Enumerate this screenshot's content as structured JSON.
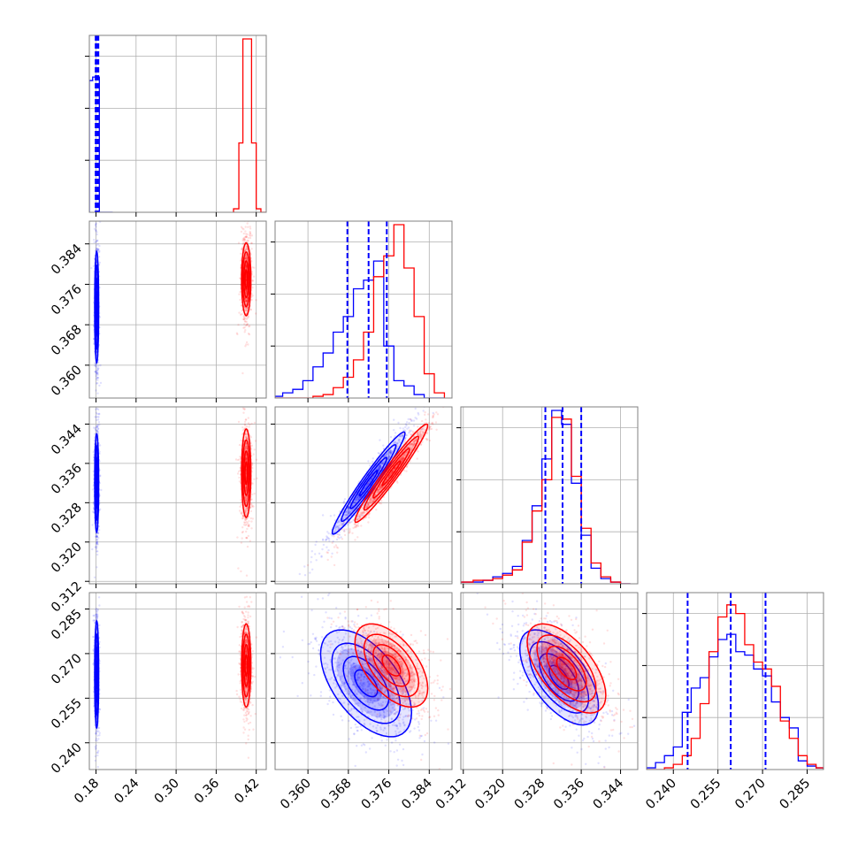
{
  "chart_data": {
    "type": "scatter",
    "chart_kind": "corner-plot",
    "grid": true,
    "series": [
      {
        "name": "",
        "color": "#0000ff"
      },
      {
        "name": "",
        "color": "#ff0000"
      }
    ],
    "parameters": [
      {
        "range": [
          0.17,
          0.435
        ],
        "ticks": [
          0.18,
          0.24,
          0.3,
          0.36,
          0.42
        ],
        "tick_labels": [
          "0.18",
          "0.24",
          "0.30",
          "0.36",
          "0.42"
        ]
      },
      {
        "range": [
          0.3535,
          0.3885
        ],
        "ticks": [
          0.36,
          0.368,
          0.376,
          0.384
        ],
        "tick_labels": [
          "0.360",
          "0.368",
          "0.376",
          "0.384"
        ]
      },
      {
        "range": [
          0.3115,
          0.3475
        ],
        "ticks": [
          0.312,
          0.32,
          0.328,
          0.336,
          0.344
        ],
        "tick_labels": [
          "0.312",
          "0.320",
          "0.328",
          "0.336",
          "0.344"
        ]
      },
      {
        "range": [
          0.231,
          0.2905
        ],
        "ticks": [
          0.24,
          0.255,
          0.27,
          0.285
        ],
        "tick_labels": [
          "0.240",
          "0.255",
          "0.270",
          "0.285"
        ]
      }
    ],
    "histograms": [
      {
        "param": 0,
        "blue": {
          "edges": [
            0.17,
            0.175,
            0.185,
            0.195,
            0.205
          ],
          "counts": [
            0.76,
            0.78,
            0.0,
            0.0
          ],
          "quantile_lines": [
            0.1795,
            0.1805,
            0.1815,
            0.1825,
            0.1835
          ]
        },
        "red": {
          "edges": [
            0.386,
            0.394,
            0.4,
            0.407,
            0.413,
            0.42,
            0.427,
            0.435
          ],
          "counts": [
            0.02,
            0.4,
            1.0,
            1.0,
            0.4,
            0.02,
            0.0
          ],
          "quantile_lines": []
        }
      },
      {
        "param": 1,
        "edges": [
          0.3535,
          0.355,
          0.357,
          0.359,
          0.361,
          0.363,
          0.365,
          0.367,
          0.369,
          0.371,
          0.373,
          0.375,
          0.377,
          0.379,
          0.381,
          0.383,
          0.385,
          0.387
        ],
        "blue": {
          "counts": [
            0.01,
            0.03,
            0.05,
            0.1,
            0.18,
            0.26,
            0.38,
            0.47,
            0.63,
            0.68,
            0.79,
            0.3,
            0.1,
            0.07,
            0.02,
            0.0,
            0.0
          ],
          "quantile_lines": [
            0.3678,
            0.372,
            0.3756
          ]
        },
        "red": {
          "counts": [
            0.0,
            0.0,
            0.0,
            0.0,
            0.01,
            0.02,
            0.06,
            0.12,
            0.22,
            0.38,
            0.7,
            0.82,
            1.0,
            0.75,
            0.47,
            0.14,
            0.03
          ],
          "quantile_lines": []
        }
      },
      {
        "param": 2,
        "edges": [
          0.3115,
          0.314,
          0.316,
          0.318,
          0.32,
          0.322,
          0.324,
          0.326,
          0.328,
          0.33,
          0.332,
          0.334,
          0.336,
          0.338,
          0.34,
          0.342,
          0.344,
          0.346
        ],
        "blue": {
          "counts": [
            0.01,
            0.01,
            0.02,
            0.04,
            0.06,
            0.1,
            0.25,
            0.45,
            0.72,
            1.0,
            0.92,
            0.58,
            0.28,
            0.09,
            0.03,
            0.01,
            0.0
          ],
          "quantile_lines": [
            0.3287,
            0.3322,
            0.336
          ]
        },
        "red": {
          "counts": [
            0.01,
            0.02,
            0.02,
            0.03,
            0.05,
            0.08,
            0.24,
            0.42,
            0.6,
            0.96,
            0.95,
            0.62,
            0.32,
            0.12,
            0.04,
            0.01,
            0.0
          ],
          "quantile_lines": []
        }
      },
      {
        "param": 3,
        "edges": [
          0.231,
          0.234,
          0.237,
          0.24,
          0.243,
          0.246,
          0.249,
          0.252,
          0.255,
          0.258,
          0.261,
          0.264,
          0.267,
          0.27,
          0.273,
          0.276,
          0.279,
          0.282,
          0.285,
          0.288,
          0.2905
        ],
        "blue": {
          "counts": [
            0.01,
            0.04,
            0.08,
            0.13,
            0.33,
            0.47,
            0.53,
            0.65,
            0.75,
            0.78,
            0.68,
            0.66,
            0.58,
            0.54,
            0.39,
            0.3,
            0.24,
            0.05,
            0.02,
            0.01
          ],
          "quantile_lines": [
            0.2448,
            0.2593,
            0.271
          ]
        },
        "red": {
          "counts": [
            0.0,
            0.0,
            0.01,
            0.03,
            0.08,
            0.18,
            0.38,
            0.68,
            0.88,
            0.95,
            0.9,
            0.72,
            0.62,
            0.58,
            0.48,
            0.28,
            0.18,
            0.08,
            0.03,
            0.01
          ],
          "quantile_lines": []
        }
      }
    ],
    "scatter_panels": [
      {
        "x": 0,
        "y": 1,
        "blue": {
          "center": [
            0.181,
            0.3715
          ],
          "sd": [
            0.0015,
            0.0055
          ],
          "rho": 0.0
        },
        "red": {
          "center": [
            0.405,
            0.377
          ],
          "sd": [
            0.0035,
            0.0036
          ],
          "rho": 0.0
        }
      },
      {
        "x": 0,
        "y": 2,
        "blue": {
          "center": [
            0.181,
            0.332
          ],
          "sd": [
            0.0015,
            0.005
          ],
          "rho": 0.0
        },
        "red": {
          "center": [
            0.405,
            0.334
          ],
          "sd": [
            0.0035,
            0.0045
          ],
          "rho": 0.0
        }
      },
      {
        "x": 0,
        "y": 3,
        "blue": {
          "center": [
            0.181,
            0.263
          ],
          "sd": [
            0.0015,
            0.009
          ],
          "rho": 0.0
        },
        "red": {
          "center": [
            0.405,
            0.266
          ],
          "sd": [
            0.0035,
            0.007
          ],
          "rho": 0.0
        }
      },
      {
        "x": 1,
        "y": 2,
        "blue": {
          "center": [
            0.372,
            0.332
          ],
          "sd": [
            0.0036,
            0.0052
          ],
          "rho": 0.97
        },
        "red": {
          "center": [
            0.3765,
            0.334
          ],
          "sd": [
            0.0036,
            0.005
          ],
          "rho": 0.97
        }
      },
      {
        "x": 1,
        "y": 3,
        "blue": {
          "center": [
            0.3715,
            0.26
          ],
          "sd": [
            0.0045,
            0.009
          ],
          "rho": -0.55
        },
        "red": {
          "center": [
            0.3765,
            0.266
          ],
          "sd": [
            0.0036,
            0.007
          ],
          "rho": -0.55
        }
      },
      {
        "x": 2,
        "y": 3,
        "blue": {
          "center": [
            0.3315,
            0.262
          ],
          "sd": [
            0.004,
            0.008
          ],
          "rho": -0.6
        },
        "red": {
          "center": [
            0.333,
            0.265
          ],
          "sd": [
            0.004,
            0.0075
          ],
          "rho": -0.6
        }
      }
    ]
  }
}
